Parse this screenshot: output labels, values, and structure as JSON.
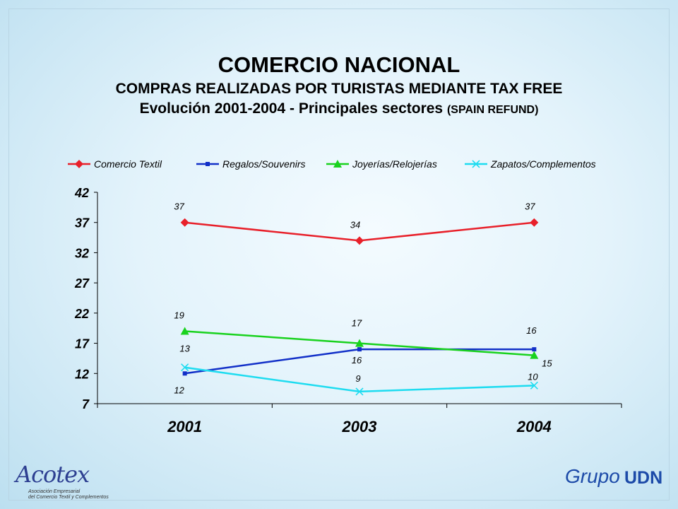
{
  "header": {
    "title": "COMERCIO NACIONAL",
    "subtitle": "COMPRAS REALIZADAS POR TURISTAS MEDIANTE TAX FREE",
    "subtitle2_main": "Evolución 2001-2004 - Principales sectores",
    "subtitle2_small": "(SPAIN REFUND)"
  },
  "chart_data": {
    "type": "line",
    "categories": [
      "2001",
      "2003",
      "2004"
    ],
    "ylim": [
      7,
      42
    ],
    "yticks": [
      "42",
      "37",
      "32",
      "27",
      "22",
      "17",
      "12",
      "7"
    ],
    "legend_position": "top",
    "grid": false,
    "series": [
      {
        "name": "Comercio Textil",
        "values": [
          37,
          34,
          37
        ],
        "labels": [
          "37",
          "34",
          "37"
        ],
        "color": "#e8202a",
        "marker": "diamond"
      },
      {
        "name": "Regalos/Souvenirs",
        "values": [
          12,
          16,
          16
        ],
        "labels": [
          "12",
          "16",
          "16"
        ],
        "color": "#1230c8",
        "marker": "square"
      },
      {
        "name": "Joyerías/Relojerías",
        "values": [
          19,
          17,
          15
        ],
        "labels": [
          "19",
          "17",
          "15"
        ],
        "color": "#19d21e",
        "marker": "triangle"
      },
      {
        "name": "Zapatos/Complementos",
        "values": [
          13,
          9,
          10
        ],
        "labels": [
          "13",
          "9",
          "10"
        ],
        "color": "#1edcf0",
        "marker": "x"
      }
    ]
  },
  "logos": {
    "left_name": "Acotex",
    "left_line1": "Asociación Empresarial",
    "left_line2": "del Comercio Textil y Complementos",
    "right_name_a": "Grupo",
    "right_name_b": "UDN"
  }
}
